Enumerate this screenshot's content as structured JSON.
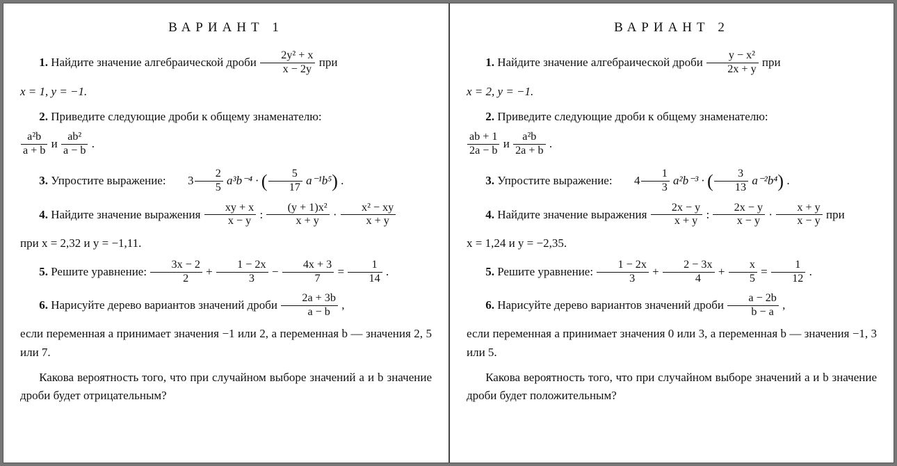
{
  "variant1": {
    "title": "ВАРИАНТ 1",
    "p1_a": "1.",
    "p1_b": " Найдите значение алгебраической дроби ",
    "p1_fr_t": "2y² + x",
    "p1_fr_b": "x − 2y",
    "p1_c": " при",
    "p1_d": "x = 1, y = −1.",
    "p2_a": "2.",
    "p2_b": " Приведите следующие дроби к общему знаменателю:",
    "p2_fr1_t": "a²b",
    "p2_fr1_b": "a + b",
    "p2_and": " и ",
    "p2_fr2_t": "ab²",
    "p2_fr2_b": "a − b",
    "p2_dot": " .",
    "p3_a": "3.",
    "p3_b": " Упростите выражение: ",
    "p3_coef_int": "3",
    "p3_coef_t": "2",
    "p3_coef_b": "5",
    "p3_mid": " a³b⁻⁴ · ",
    "p3_in_t": "5",
    "p3_in_b": "17",
    "p3_tail": " a⁻¹b⁵",
    "p3_dot": " .",
    "p4_a": "4.",
    "p4_b": " Найдите значение выражения ",
    "p4_f1_t": "xy + x",
    "p4_f1_b": "x − y",
    "p4_colon": " : ",
    "p4_f2_t": "(y + 1)x²",
    "p4_f2_b": "x + y",
    "p4_dot1": " · ",
    "p4_f3_t": "x² − xy",
    "p4_f3_b": "x + y",
    "p4_c": "при x = 2,32 и y = −1,11.",
    "p5_a": "5.",
    "p5_b": " Решите уравнение: ",
    "p5_f1_t": "3x − 2",
    "p5_f1_b": "2",
    "p5_plus1": " + ",
    "p5_f2_t": "1 − 2x",
    "p5_f2_b": "3",
    "p5_minus": " − ",
    "p5_f3_t": "4x + 3",
    "p5_f3_b": "7",
    "p5_eq": " = ",
    "p5_f4_t": "1",
    "p5_f4_b": "14",
    "p5_dot": " .",
    "p6_a": "6.",
    "p6_b": " Нарисуйте дерево вариантов значений дроби ",
    "p6_fr_t": "2a + 3b",
    "p6_fr_b": "a − b",
    "p6_c": " ,",
    "p6_d": "если переменная a принимает значения −1 или 2, а переменная b — значения 2, 5 или 7.",
    "p6_e": "Какова вероятность того, что при случайном выборе значений a и b значение дроби будет отрицательным?"
  },
  "variant2": {
    "title": "ВАРИАНТ 2",
    "p1_a": "1.",
    "p1_b": " Найдите значение алгебраической дроби ",
    "p1_fr_t": "y − x²",
    "p1_fr_b": "2x + y",
    "p1_c": " при",
    "p1_d": "x = 2, y = −1.",
    "p2_a": "2.",
    "p2_b": " Приведите следующие дроби к общему знаменателю:",
    "p2_fr1_t": "ab + 1",
    "p2_fr1_b": "2a − b",
    "p2_and": " и ",
    "p2_fr2_t": "a²b",
    "p2_fr2_b": "2a + b",
    "p2_dot": " .",
    "p3_a": "3.",
    "p3_b": " Упростите выражение: ",
    "p3_coef_int": "4",
    "p3_coef_t": "1",
    "p3_coef_b": "3",
    "p3_mid": " a²b⁻³ · ",
    "p3_in_t": "3",
    "p3_in_b": "13",
    "p3_tail": " a⁻²b⁴",
    "p3_dot": " .",
    "p4_a": "4.",
    "p4_b": " Найдите значение выражения ",
    "p4_f1_t": "2x − y",
    "p4_f1_b": "x + y",
    "p4_colon": " : ",
    "p4_f2_t": "2x − y",
    "p4_f2_b": "x − y",
    "p4_dot1": " · ",
    "p4_f3_t": "x + y",
    "p4_f3_b": "x − y",
    "p4_c": " при",
    "p4_d": "x = 1,24 и y = −2,35.",
    "p5_a": "5.",
    "p5_b": " Решите уравнение: ",
    "p5_f1_t": "1 − 2x",
    "p5_f1_b": "3",
    "p5_plus1": " + ",
    "p5_f2_t": "2 − 3x",
    "p5_f2_b": "4",
    "p5_plus2": " + ",
    "p5_f3_t": "x",
    "p5_f3_b": "5",
    "p5_eq": " = ",
    "p5_f4_t": "1",
    "p5_f4_b": "12",
    "p5_dot": " .",
    "p6_a": "6.",
    "p6_b": " Нарисуйте дерево вариантов значений дроби ",
    "p6_fr_t": "a − 2b",
    "p6_fr_b": "b − a",
    "p6_c": " ,",
    "p6_d": "если переменная a принимает значения 0 или 3, а переменная b — значения −1, 3 или 5.",
    "p6_e": "Какова вероятность того, что при случайном выборе значений a и b значение дроби будет положительным?"
  }
}
